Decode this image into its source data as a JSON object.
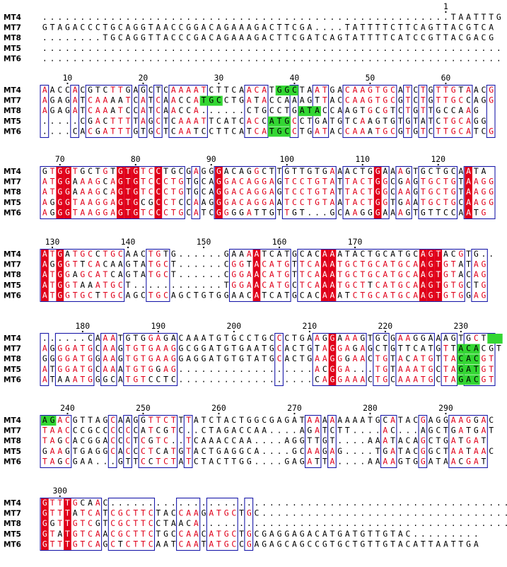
{
  "colors": {
    "identical_bg": "#e0001a",
    "identical_fg": "#ffffff",
    "similar_fg": "#e0001a",
    "highlight_bg": "#33d633",
    "frame": "#1a1aaa",
    "text": "#000000"
  },
  "blocks": [
    {
      "numbers": [
        1
      ],
      "rows": [
        {
          "name": "MT4",
          "seq": "......................................................TAATTTG",
          "hl": []
        },
        {
          "name": "MT7",
          "seq": "GTAGACCCTGCAGGTAACCGGACAGAAAGACTTCGA....TATTTTCTTCAGTTACGTCA",
          "hl": []
        },
        {
          "name": "MT8",
          "seq": "........TGCAGGTTACCCGACAGAAAGACTTCGATCAGTATTTTCATCCGTTACGACG",
          "hl": []
        },
        {
          "name": "MT5",
          "seq": ".............................................................",
          "hl": []
        },
        {
          "name": "MT6",
          "seq": ".............................................................",
          "hl": []
        }
      ]
    },
    {
      "numbers": [
        10,
        20,
        30,
        40,
        50,
        60
      ],
      "rows": [
        {
          "name": "MT4",
          "seq": "AACCACGTCTTGAGCTCAAAATCTTCAACATGGCTAATGACAAGTGCATCTGTTGTAACG",
          "hl": [
            [
              31,
              33
            ]
          ]
        },
        {
          "name": "MT7",
          "seq": "AGAGATCAAAATCATCAACCATGCCTGATACCAAAGTTACCAAGTGCGTCTGTTGCCAGG",
          "hl": [
            [
              21,
              23
            ]
          ]
        },
        {
          "name": "MT8",
          "seq": "AGAGATCAAATCCATCAACCA......CTGCCTGATACCAAGTGCGTCTGTTGCCAAG",
          "hl": [
            [
              34,
              36
            ]
          ]
        },
        {
          "name": "MT5",
          "seq": ".....CGACTTTTAGCTCAAATTCATCACCATGCCTGATGTCAAGTGTGTATCTGCAGG",
          "hl": [
            [
              30,
              32
            ]
          ]
        },
        {
          "name": "MT6",
          "seq": "....CACGATTTGTGCTCAATCCTTCATCATGCCTGATACCAAATGCGTGTCTTGCATCG",
          "hl": [
            [
              30,
              32
            ]
          ]
        }
      ]
    },
    {
      "numbers": [
        70,
        80,
        90,
        100,
        110,
        120
      ],
      "rows": [
        {
          "name": "MT4",
          "seq": "GTGGTGCTGTGTGTCCTGCGAGGGACAGGCTTGTTGTGAAACTGGAAAGTGCTGCAATA",
          "hl": []
        },
        {
          "name": "MT7",
          "seq": "ATGGAAAGCAGTGTCCCTGTGCAGGACAGGAGTCCTGTATTACTGGCGAGTGCTGTAAGG",
          "hl": []
        },
        {
          "name": "MT8",
          "seq": "ATGGAAAGCAGTGTCCCTGTGCAGGACAGGAGTCCTGTATTACTGGCAAGTGCTGTAAGG",
          "hl": []
        },
        {
          "name": "MT5",
          "seq": "AGGGTAAGGAGTGCGCCTCCAAGGGACAGGAATCCTGTAATACTGGTGAATGCTGCAAGG",
          "hl": []
        },
        {
          "name": "MT6",
          "seq": "AGGGTAAGGAGTGTCCCTGCATCGGGGATTGTTGT...GCAAGGGAAAGTGTTCCAATG",
          "hl": []
        }
      ]
    },
    {
      "numbers": [
        130,
        140,
        150,
        160,
        170
      ],
      "rows": [
        {
          "name": "MT4",
          "seq": "ATGATGCCTGCAACTGTG......GAAAATCATGCACAAATACTGCATGCAGTACGTG..",
          "hl": []
        },
        {
          "name": "MT7",
          "seq": "AGGGTTCACAAGTATGCT......CGGTACATGTTCAAATGCTGCATGCAAGTGTATAG",
          "hl": []
        },
        {
          "name": "MT8",
          "seq": "ATGGAGCATCAGTATGCT......CGGAACATGTTCAAATGCTGCATGCAAGTGTACAG",
          "hl": []
        },
        {
          "name": "MT5",
          "seq": "ATGGTAAATGCT............TGGAACATGCTCAAATGCTTCATGCAAGTGTGCTG",
          "hl": []
        },
        {
          "name": "MT6",
          "seq": "ATGGTGCTTGCAGCTGCAGCTGTGGAACATCATGCACAAATCTGCATGCAAGTGTGGAG",
          "hl": []
        }
      ]
    },
    {
      "numbers": [
        180,
        190,
        200,
        210,
        220,
        230
      ],
      "rows": [
        {
          "name": "MT4",
          "seq": "......CAAATGTGGAGACAAATGTGCCTGCCCTGAAGGAAAGTGCGAAGGAAAGTGCT",
          "hl": [
            [
              59,
              60
            ]
          ]
        },
        {
          "name": "MT7",
          "seq": "AGGGATGCAAGTGTGAAGGCGGATGTGAATGCACTGTAGGAGAGCTGTTCATGTTACACGT",
          "hl": [
            [
              55,
              57
            ]
          ]
        },
        {
          "name": "MT8",
          "seq": "GGGGATGGAAGTGTGAAGGAGGATGTGTATGCACTGAAGGGAACTGTACATGTTACACGT",
          "hl": [
            [
              55,
              57
            ]
          ]
        },
        {
          "name": "MT5",
          "seq": "ATGGATGCAAATGTGGAG..................ACGGA...TGTAAATGCTAGATGT",
          "hl": [
            [
              55,
              57
            ]
          ]
        },
        {
          "name": "MT6",
          "seq": "ATAAATGGGCATGTCCTC..................CAGGAAACTGCAAATGCTAGACGT",
          "hl": [
            [
              55,
              57
            ]
          ]
        }
      ]
    },
    {
      "numbers": [
        240,
        250,
        260,
        270,
        280,
        290
      ],
      "rows": [
        {
          "name": "MT4",
          "seq": "AGACGTTAGCAAGGTTCTTTATCTACTGGCGAGATAAAAAAAATGCATACGAGGAAGGAC",
          "hl": [
            [
              0,
              1
            ]
          ]
        },
        {
          "name": "MT7",
          "seq": "TAACCCGCCCCCCATCGTC..CTAGACCAA....AGATCTT....AC...AGCTGATGAT",
          "hl": []
        },
        {
          "name": "MT8",
          "seq": "TAGCACGGACCCTCGTC..TCAAACCAA....AGGTTGT....AAATACAGCTGATGAT",
          "hl": []
        },
        {
          "name": "MT5",
          "seq": "GAAGTGAGGCACCCTCATGTACTGAGGCA....GCAAGAG....TGATACGGCTAATAAC",
          "hl": []
        },
        {
          "name": "MT6",
          "seq": "TAGCGAA...GTTCCTCTATCTACTTGG....GAGATTA....AAAAGTGGATAACGAT",
          "hl": []
        }
      ]
    },
    {
      "numbers": [
        300
      ],
      "rows": [
        {
          "name": "MT4",
          "seq": "GTTTGCAAC.........................................................",
          "hl": []
        },
        {
          "name": "MT7",
          "seq": "GTTTATCATCGCTTCTACCAAGATGCTGC.....................................",
          "hl": []
        },
        {
          "name": "MT8",
          "seq": "GGTTGTCGTCGCTTCCTAACA.............................................",
          "hl": []
        },
        {
          "name": "MT5",
          "seq": "GTATGTCAACGCTTCTGCCAACATGCTGCGAGGAGACATGATGTTGTAC.........",
          "hl": []
        },
        {
          "name": "MT6",
          "seq": "GTTTGTCAGCTCTTCAATCAATATGCCGAGAGCAGCCGTGCTGTTGTACATTAATTGA",
          "hl": []
        }
      ]
    }
  ]
}
